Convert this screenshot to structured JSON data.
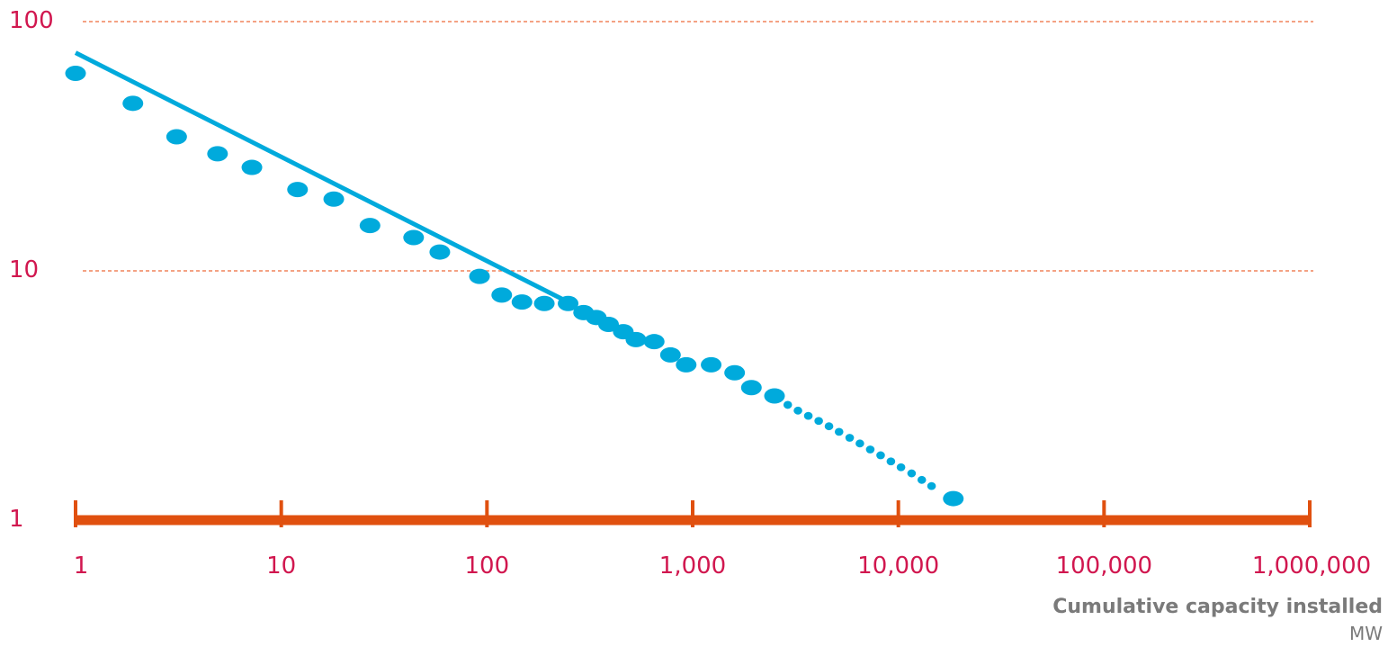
{
  "chart_data": {
    "type": "scatter",
    "title": "",
    "xlabel": "Cumulative capacity installed",
    "xunit": "MW",
    "ylabel": "",
    "x_scale": "log",
    "y_scale": "log",
    "xlim": [
      1,
      1000000
    ],
    "ylim": [
      1,
      100
    ],
    "x_ticks": [
      1,
      10,
      100,
      1000,
      10000,
      100000,
      1000000
    ],
    "x_tick_labels": [
      "1",
      "10",
      "100",
      "1,000",
      "10,000",
      "100,000",
      "1,000,000"
    ],
    "y_ticks": [
      1,
      10,
      100
    ],
    "y_tick_labels": [
      "1",
      "10",
      "100"
    ],
    "gridlines": "horizontal dashed at 10 and 100",
    "series": [
      {
        "points": [
          {
            "x": 1.0,
            "y": 62
          },
          {
            "x": 1.9,
            "y": 47
          },
          {
            "x": 3.1,
            "y": 34.5
          },
          {
            "x": 4.9,
            "y": 29.5
          },
          {
            "x": 7.2,
            "y": 26
          },
          {
            "x": 12,
            "y": 21.2
          },
          {
            "x": 18,
            "y": 19.4
          },
          {
            "x": 27,
            "y": 15.2
          },
          {
            "x": 44,
            "y": 13.6
          },
          {
            "x": 59,
            "y": 11.9
          },
          {
            "x": 92,
            "y": 9.5
          },
          {
            "x": 118,
            "y": 8.0
          },
          {
            "x": 148,
            "y": 7.5
          },
          {
            "x": 190,
            "y": 7.4
          },
          {
            "x": 248,
            "y": 7.4
          },
          {
            "x": 295,
            "y": 6.8
          },
          {
            "x": 340,
            "y": 6.5
          },
          {
            "x": 390,
            "y": 6.1
          },
          {
            "x": 460,
            "y": 5.7
          },
          {
            "x": 530,
            "y": 5.3
          },
          {
            "x": 650,
            "y": 5.2
          },
          {
            "x": 780,
            "y": 4.6
          },
          {
            "x": 930,
            "y": 4.2
          },
          {
            "x": 1230,
            "y": 4.2
          },
          {
            "x": 1600,
            "y": 3.9
          },
          {
            "x": 1930,
            "y": 3.4
          },
          {
            "x": 2500,
            "y": 3.15
          }
        ]
      },
      {
        "points": [
          {
            "x": 2900,
            "y": 2.9
          },
          {
            "x": 3250,
            "y": 2.75
          },
          {
            "x": 3650,
            "y": 2.62
          },
          {
            "x": 4100,
            "y": 2.5
          },
          {
            "x": 4600,
            "y": 2.38
          },
          {
            "x": 5150,
            "y": 2.26
          },
          {
            "x": 5800,
            "y": 2.14
          },
          {
            "x": 6500,
            "y": 2.03
          },
          {
            "x": 7300,
            "y": 1.92
          },
          {
            "x": 8200,
            "y": 1.82
          },
          {
            "x": 9200,
            "y": 1.72
          },
          {
            "x": 10300,
            "y": 1.63
          },
          {
            "x": 11600,
            "y": 1.54
          },
          {
            "x": 13000,
            "y": 1.45
          },
          {
            "x": 14500,
            "y": 1.37
          },
          {
            "x": 18500,
            "y": 1.22
          }
        ]
      }
    ],
    "trendline": {
      "x": [
        1,
        240
      ],
      "y": [
        75,
        7.6
      ]
    },
    "colors": {
      "data": "#00aadc",
      "axis": "#e0500f",
      "grid": "#ee6a3a",
      "tick_label": "#d1174f",
      "axis_title": "#7a7a7a"
    }
  }
}
